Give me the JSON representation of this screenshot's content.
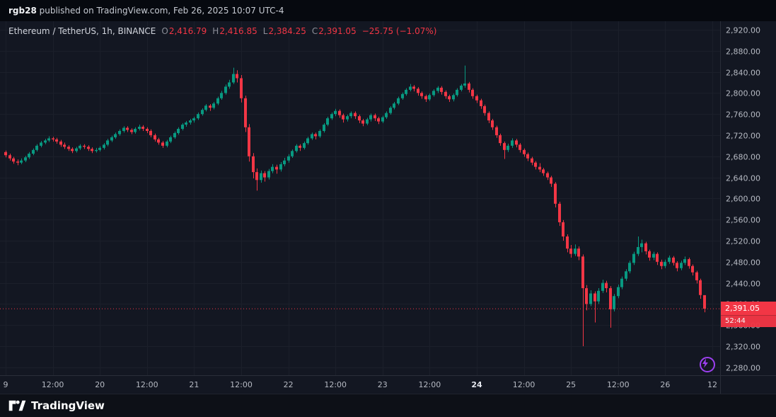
{
  "header": {
    "username": "rgb28",
    "publish_info": " published on TradingView.com, Feb 26, 2025 10:07 UTC-4"
  },
  "legend": {
    "symbol": "Ethereum / TetherUS, 1h, BINANCE",
    "ohlc": [
      {
        "label": "O",
        "value": "2,416.79"
      },
      {
        "label": "H",
        "value": "2,416.85"
      },
      {
        "label": "L",
        "value": "2,384.25"
      },
      {
        "label": "C",
        "value": "2,391.05"
      }
    ],
    "change": "−25.75 (−1.07%)"
  },
  "last_price": {
    "display": "2,391.05",
    "countdown": "52:44",
    "value": 2391.05
  },
  "footer": {
    "brand": "TradingView"
  },
  "colors": {
    "up": "#089981",
    "down": "#f23645",
    "background": "#131722",
    "header_background": "#06090f",
    "footer_background": "#0d1017",
    "grid": "#1b1f2a",
    "border": "#2a2e39",
    "axis_text": "#b6bac3",
    "axis_text_bold": "#e4e7ee",
    "symbol_text": "#d1d4dc",
    "ohlc_letter": "#8b8e98",
    "accent_purple": "#9c40f0",
    "label_text": "#ffffff"
  },
  "chart_data": {
    "type": "candlestick",
    "title": "Ethereum / TetherUS, 1h, BINANCE",
    "symbol": "ETHUSDT",
    "exchange": "BINANCE",
    "interval": "1h",
    "ylim": [
      2265,
      2936
    ],
    "grid": true,
    "ohlc_current": {
      "open": 2416.79,
      "high": 2416.85,
      "low": 2384.25,
      "close": 2391.05,
      "change": -25.75,
      "change_pct": -1.07
    },
    "y_ticks": [
      {
        "v": 2920,
        "label": "2,920.00"
      },
      {
        "v": 2880,
        "label": "2,880.00"
      },
      {
        "v": 2840,
        "label": "2,840.00"
      },
      {
        "v": 2800,
        "label": "2,800.00"
      },
      {
        "v": 2760,
        "label": "2,760.00"
      },
      {
        "v": 2720,
        "label": "2,720.00"
      },
      {
        "v": 2680,
        "label": "2,680.00"
      },
      {
        "v": 2640,
        "label": "2,640.00"
      },
      {
        "v": 2600,
        "label": "2,600.00"
      },
      {
        "v": 2560,
        "label": "2,560.00"
      },
      {
        "v": 2520,
        "label": "2,520.00"
      },
      {
        "v": 2480,
        "label": "2,480.00"
      },
      {
        "v": 2440,
        "label": "2,440.00"
      },
      {
        "v": 2400,
        "label": "2,400.00"
      },
      {
        "v": 2360,
        "label": "2,360.00"
      },
      {
        "v": 2320,
        "label": "2,320.00"
      },
      {
        "v": 2280,
        "label": "2,280.00"
      }
    ],
    "x_ticks": [
      {
        "i": 0,
        "label": "9",
        "bold": false
      },
      {
        "i": 12,
        "label": "12:00",
        "bold": false
      },
      {
        "i": 24,
        "label": "20",
        "bold": false
      },
      {
        "i": 36,
        "label": "12:00",
        "bold": false
      },
      {
        "i": 48,
        "label": "21",
        "bold": false
      },
      {
        "i": 60,
        "label": "12:00",
        "bold": false
      },
      {
        "i": 72,
        "label": "22",
        "bold": false
      },
      {
        "i": 84,
        "label": "12:00",
        "bold": false
      },
      {
        "i": 96,
        "label": "23",
        "bold": false
      },
      {
        "i": 108,
        "label": "12:00",
        "bold": false
      },
      {
        "i": 120,
        "label": "24",
        "bold": true
      },
      {
        "i": 132,
        "label": "12:00",
        "bold": false
      },
      {
        "i": 144,
        "label": "25",
        "bold": false
      },
      {
        "i": 156,
        "label": "12:00",
        "bold": false
      },
      {
        "i": 168,
        "label": "26",
        "bold": false
      },
      {
        "i": 180,
        "label": "12",
        "bold": false
      }
    ],
    "candles": [
      [
        2688,
        2691,
        2678,
        2682
      ],
      [
        2682,
        2685,
        2672,
        2676
      ],
      [
        2676,
        2679,
        2666,
        2670
      ],
      [
        2670,
        2674,
        2663,
        2668
      ],
      [
        2668,
        2676,
        2665,
        2672
      ],
      [
        2672,
        2681,
        2669,
        2678
      ],
      [
        2678,
        2688,
        2675,
        2685
      ],
      [
        2685,
        2695,
        2682,
        2692
      ],
      [
        2692,
        2703,
        2689,
        2700
      ],
      [
        2700,
        2709,
        2697,
        2706
      ],
      [
        2706,
        2713,
        2703,
        2710
      ],
      [
        2710,
        2718,
        2707,
        2714
      ],
      [
        2714,
        2717,
        2708,
        2712
      ],
      [
        2712,
        2715,
        2704,
        2708
      ],
      [
        2708,
        2711,
        2698,
        2702
      ],
      [
        2702,
        2706,
        2694,
        2698
      ],
      [
        2698,
        2701,
        2690,
        2694
      ],
      [
        2694,
        2697,
        2686,
        2690
      ],
      [
        2690,
        2698,
        2687,
        2695
      ],
      [
        2695,
        2703,
        2692,
        2700
      ],
      [
        2700,
        2703,
        2694,
        2698
      ],
      [
        2698,
        2701,
        2690,
        2694
      ],
      [
        2694,
        2697,
        2686,
        2690
      ],
      [
        2690,
        2696,
        2687,
        2692
      ],
      [
        2692,
        2699,
        2689,
        2696
      ],
      [
        2696,
        2705,
        2693,
        2702
      ],
      [
        2702,
        2713,
        2699,
        2710
      ],
      [
        2710,
        2719,
        2707,
        2716
      ],
      [
        2716,
        2725,
        2713,
        2722
      ],
      [
        2722,
        2731,
        2719,
        2728
      ],
      [
        2728,
        2737,
        2725,
        2734
      ],
      [
        2734,
        2737,
        2726,
        2730
      ],
      [
        2730,
        2733,
        2722,
        2726
      ],
      [
        2726,
        2735,
        2723,
        2732
      ],
      [
        2732,
        2740,
        2729,
        2736
      ],
      [
        2736,
        2739,
        2728,
        2732
      ],
      [
        2732,
        2735,
        2724,
        2728
      ],
      [
        2728,
        2731,
        2716,
        2720
      ],
      [
        2720,
        2723,
        2708,
        2712
      ],
      [
        2712,
        2715,
        2702,
        2706
      ],
      [
        2706,
        2709,
        2696,
        2700
      ],
      [
        2700,
        2711,
        2697,
        2708
      ],
      [
        2708,
        2719,
        2705,
        2716
      ],
      [
        2716,
        2727,
        2713,
        2724
      ],
      [
        2724,
        2735,
        2721,
        2732
      ],
      [
        2732,
        2743,
        2729,
        2740
      ],
      [
        2740,
        2747,
        2736,
        2744
      ],
      [
        2744,
        2751,
        2740,
        2748
      ],
      [
        2748,
        2755,
        2744,
        2752
      ],
      [
        2752,
        2763,
        2749,
        2760
      ],
      [
        2760,
        2771,
        2757,
        2768
      ],
      [
        2768,
        2779,
        2765,
        2776
      ],
      [
        2776,
        2779,
        2766,
        2772
      ],
      [
        2772,
        2783,
        2769,
        2780
      ],
      [
        2780,
        2793,
        2777,
        2790
      ],
      [
        2790,
        2804,
        2787,
        2800
      ],
      [
        2800,
        2816,
        2797,
        2812
      ],
      [
        2812,
        2825,
        2808,
        2820
      ],
      [
        2820,
        2848,
        2817,
        2836
      ],
      [
        2836,
        2843,
        2820,
        2828
      ],
      [
        2828,
        2834,
        2782,
        2790
      ],
      [
        2790,
        2795,
        2726,
        2735
      ],
      [
        2735,
        2741,
        2670,
        2680
      ],
      [
        2680,
        2686,
        2638,
        2650
      ],
      [
        2650,
        2657,
        2615,
        2635
      ],
      [
        2635,
        2653,
        2630,
        2648
      ],
      [
        2648,
        2652,
        2632,
        2640
      ],
      [
        2640,
        2656,
        2636,
        2652
      ],
      [
        2652,
        2665,
        2648,
        2660
      ],
      [
        2660,
        2664,
        2647,
        2655
      ],
      [
        2655,
        2669,
        2651,
        2665
      ],
      [
        2665,
        2677,
        2661,
        2672
      ],
      [
        2672,
        2684,
        2668,
        2680
      ],
      [
        2680,
        2693,
        2677,
        2690
      ],
      [
        2690,
        2703,
        2687,
        2700
      ],
      [
        2700,
        2703,
        2690,
        2696
      ],
      [
        2696,
        2708,
        2693,
        2705
      ],
      [
        2705,
        2717,
        2702,
        2714
      ],
      [
        2714,
        2725,
        2711,
        2722
      ],
      [
        2722,
        2725,
        2712,
        2718
      ],
      [
        2718,
        2731,
        2715,
        2728
      ],
      [
        2728,
        2743,
        2725,
        2740
      ],
      [
        2740,
        2755,
        2737,
        2752
      ],
      [
        2752,
        2763,
        2749,
        2760
      ],
      [
        2760,
        2770,
        2756,
        2766
      ],
      [
        2766,
        2769,
        2753,
        2758
      ],
      [
        2758,
        2761,
        2744,
        2750
      ],
      [
        2750,
        2759,
        2746,
        2756
      ],
      [
        2756,
        2765,
        2752,
        2762
      ],
      [
        2762,
        2765,
        2751,
        2756
      ],
      [
        2756,
        2759,
        2743,
        2748
      ],
      [
        2748,
        2751,
        2737,
        2742
      ],
      [
        2742,
        2753,
        2739,
        2750
      ],
      [
        2750,
        2761,
        2746,
        2758
      ],
      [
        2758,
        2761,
        2747,
        2752
      ],
      [
        2752,
        2755,
        2741,
        2746
      ],
      [
        2746,
        2757,
        2743,
        2754
      ],
      [
        2754,
        2765,
        2751,
        2762
      ],
      [
        2762,
        2775,
        2759,
        2772
      ],
      [
        2772,
        2783,
        2769,
        2780
      ],
      [
        2780,
        2793,
        2777,
        2790
      ],
      [
        2790,
        2801,
        2787,
        2798
      ],
      [
        2798,
        2809,
        2795,
        2806
      ],
      [
        2806,
        2817,
        2803,
        2812
      ],
      [
        2812,
        2815,
        2803,
        2808
      ],
      [
        2808,
        2811,
        2795,
        2800
      ],
      [
        2800,
        2803,
        2789,
        2794
      ],
      [
        2794,
        2797,
        2783,
        2788
      ],
      [
        2788,
        2799,
        2785,
        2796
      ],
      [
        2796,
        2807,
        2793,
        2804
      ],
      [
        2804,
        2813,
        2800,
        2810
      ],
      [
        2810,
        2813,
        2797,
        2802
      ],
      [
        2802,
        2805,
        2789,
        2794
      ],
      [
        2794,
        2797,
        2783,
        2788
      ],
      [
        2788,
        2799,
        2784,
        2796
      ],
      [
        2796,
        2809,
        2793,
        2806
      ],
      [
        2806,
        2817,
        2803,
        2814
      ],
      [
        2814,
        2852,
        2810,
        2818
      ],
      [
        2818,
        2821,
        2801,
        2806
      ],
      [
        2806,
        2809,
        2789,
        2794
      ],
      [
        2794,
        2797,
        2781,
        2786
      ],
      [
        2786,
        2789,
        2770,
        2775
      ],
      [
        2775,
        2778,
        2757,
        2762
      ],
      [
        2762,
        2765,
        2743,
        2748
      ],
      [
        2748,
        2751,
        2730,
        2735
      ],
      [
        2735,
        2738,
        2715,
        2720
      ],
      [
        2720,
        2723,
        2700,
        2705
      ],
      [
        2705,
        2708,
        2675,
        2692
      ],
      [
        2692,
        2704,
        2688,
        2700
      ],
      [
        2700,
        2714,
        2696,
        2710
      ],
      [
        2710,
        2713,
        2697,
        2702
      ],
      [
        2702,
        2705,
        2687,
        2692
      ],
      [
        2692,
        2695,
        2679,
        2684
      ],
      [
        2684,
        2687,
        2671,
        2676
      ],
      [
        2676,
        2679,
        2663,
        2668
      ],
      [
        2668,
        2671,
        2655,
        2660
      ],
      [
        2660,
        2667,
        2650,
        2655
      ],
      [
        2655,
        2658,
        2643,
        2648
      ],
      [
        2648,
        2651,
        2635,
        2640
      ],
      [
        2640,
        2643,
        2622,
        2628
      ],
      [
        2628,
        2631,
        2583,
        2590
      ],
      [
        2590,
        2594,
        2548,
        2555
      ],
      [
        2555,
        2559,
        2520,
        2528
      ],
      [
        2528,
        2532,
        2498,
        2505
      ],
      [
        2505,
        2512,
        2488,
        2495
      ],
      [
        2495,
        2513,
        2491,
        2505
      ],
      [
        2505,
        2509,
        2483,
        2490
      ],
      [
        2490,
        2494,
        2320,
        2430
      ],
      [
        2430,
        2436,
        2388,
        2400
      ],
      [
        2400,
        2426,
        2396,
        2420
      ],
      [
        2420,
        2424,
        2365,
        2405
      ],
      [
        2405,
        2430,
        2400,
        2425
      ],
      [
        2425,
        2446,
        2421,
        2440
      ],
      [
        2440,
        2444,
        2422,
        2430
      ],
      [
        2430,
        2434,
        2355,
        2390
      ],
      [
        2390,
        2419,
        2386,
        2415
      ],
      [
        2415,
        2437,
        2411,
        2432
      ],
      [
        2432,
        2452,
        2428,
        2448
      ],
      [
        2448,
        2466,
        2444,
        2462
      ],
      [
        2462,
        2482,
        2458,
        2478
      ],
      [
        2478,
        2499,
        2474,
        2495
      ],
      [
        2495,
        2528,
        2491,
        2508
      ],
      [
        2508,
        2522,
        2498,
        2515
      ],
      [
        2515,
        2518,
        2494,
        2500
      ],
      [
        2500,
        2503,
        2482,
        2488
      ],
      [
        2488,
        2499,
        2483,
        2495
      ],
      [
        2495,
        2498,
        2474,
        2480
      ],
      [
        2480,
        2484,
        2466,
        2472
      ],
      [
        2472,
        2484,
        2468,
        2480
      ],
      [
        2480,
        2492,
        2476,
        2488
      ],
      [
        2488,
        2491,
        2473,
        2478
      ],
      [
        2478,
        2481,
        2462,
        2468
      ],
      [
        2468,
        2482,
        2464,
        2478
      ],
      [
        2478,
        2490,
        2474,
        2485
      ],
      [
        2485,
        2488,
        2467,
        2472
      ],
      [
        2472,
        2475,
        2454,
        2460
      ],
      [
        2460,
        2463,
        2439,
        2445
      ],
      [
        2445,
        2448,
        2410,
        2417
      ],
      [
        2416.79,
        2416.85,
        2384.25,
        2391.05
      ]
    ]
  }
}
